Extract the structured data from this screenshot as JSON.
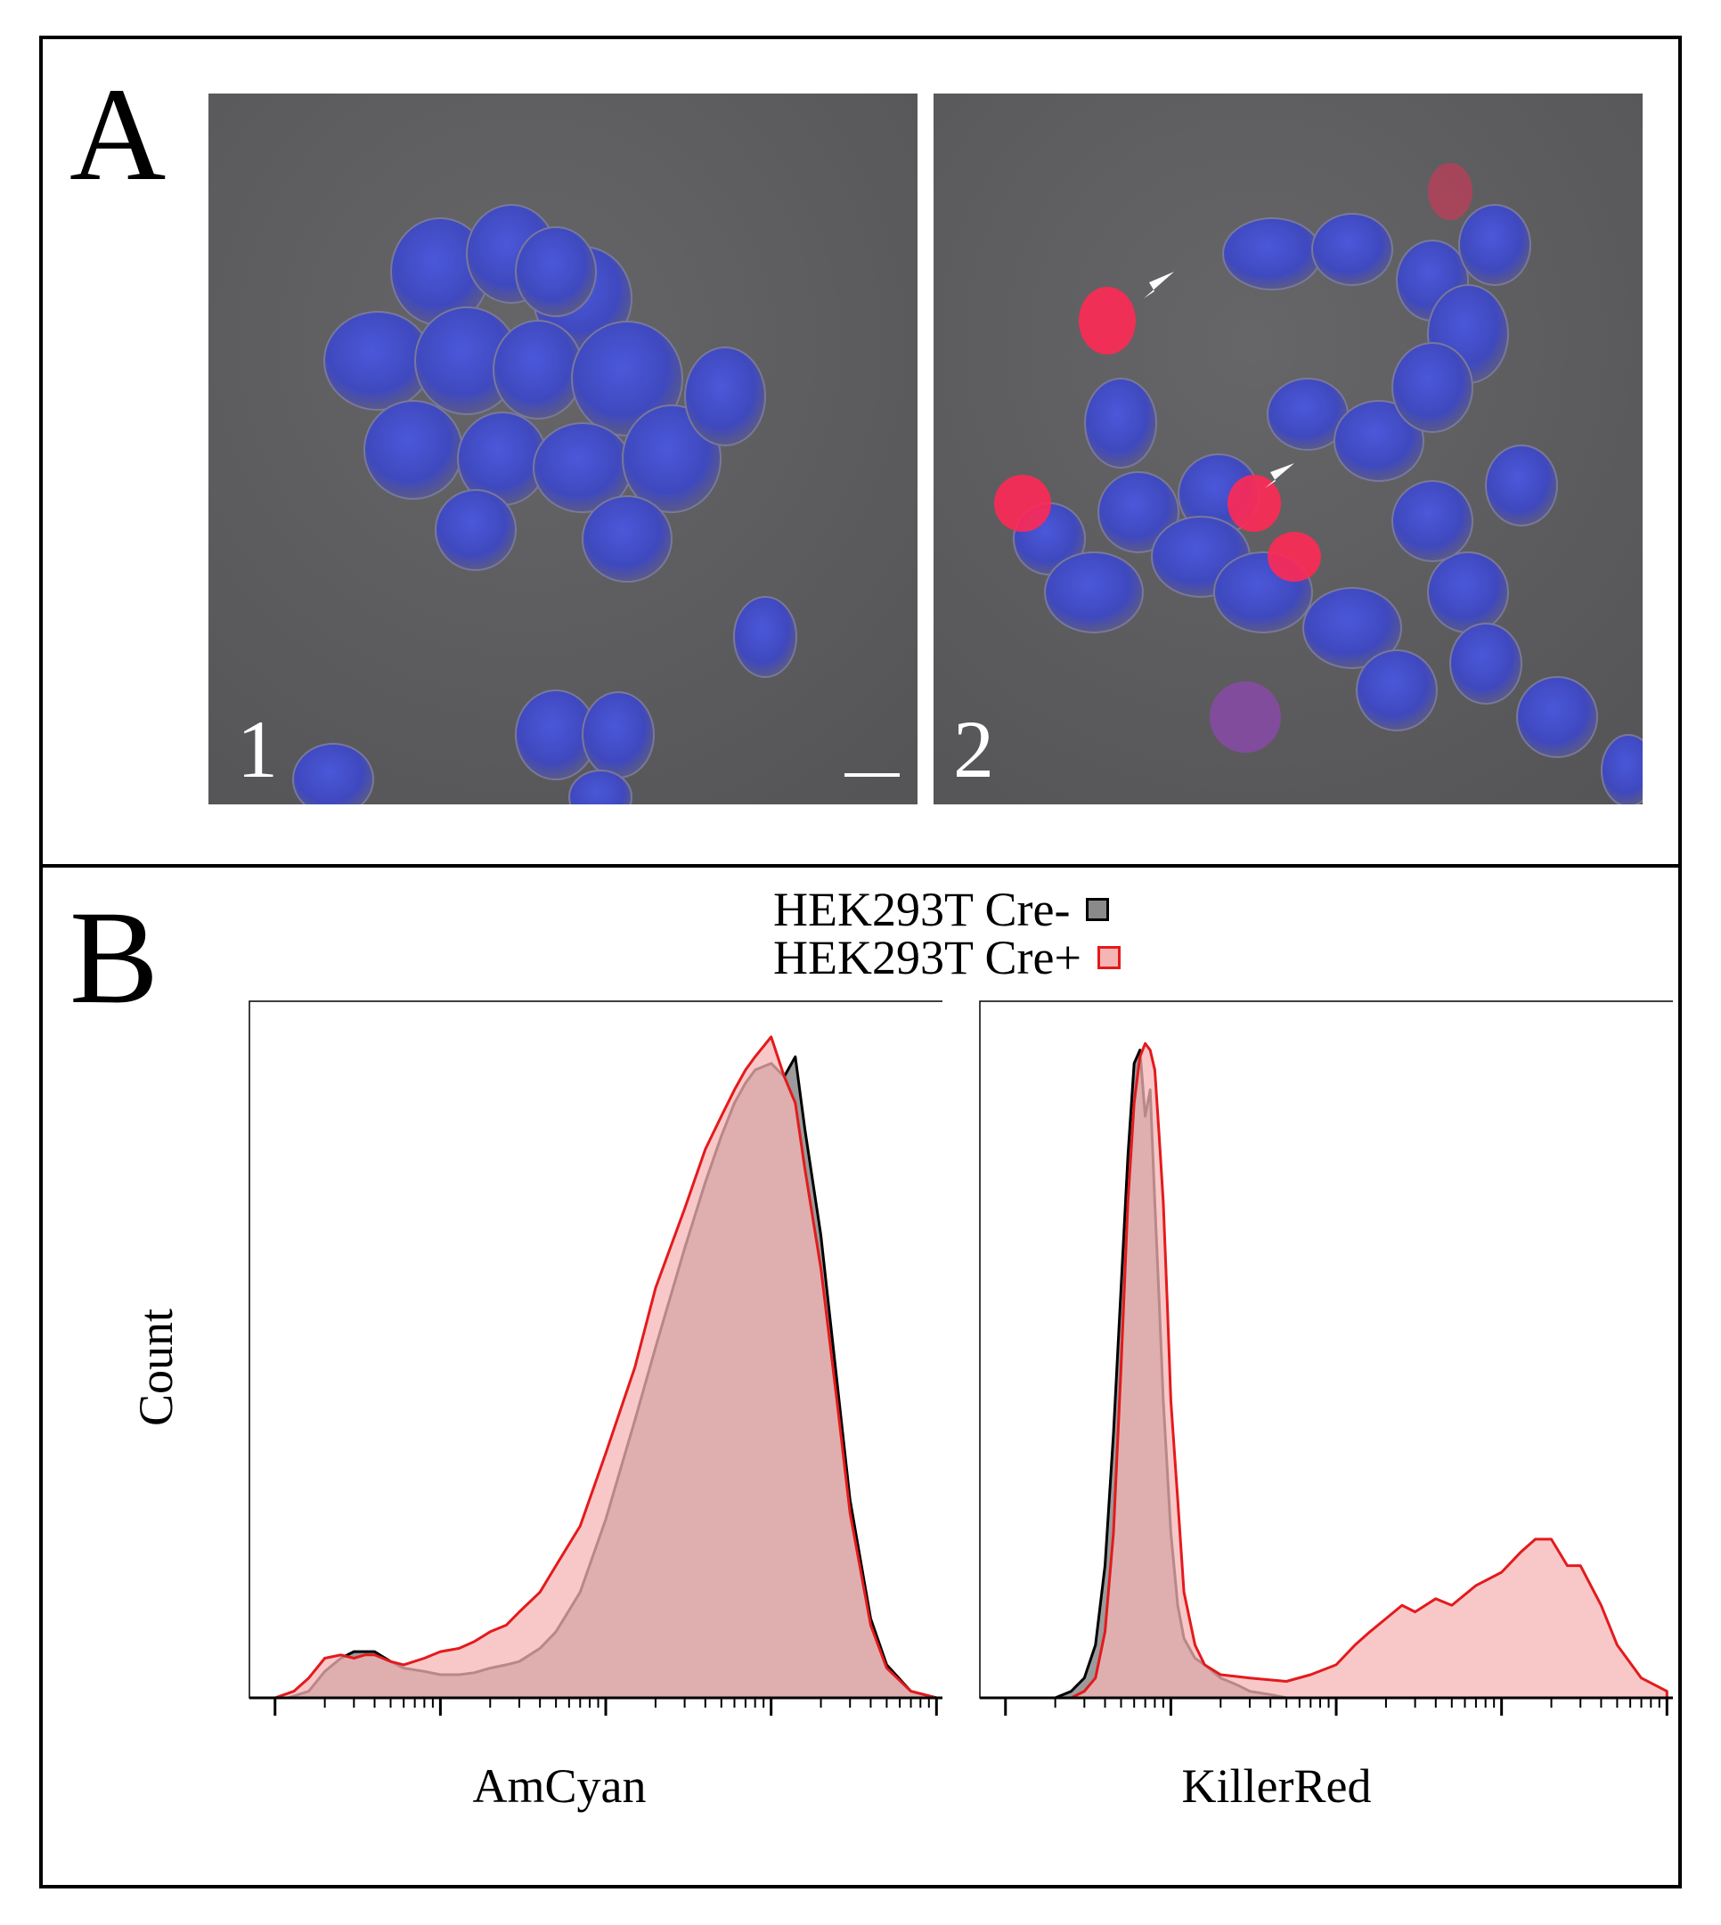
{
  "panel_a": {
    "letter": "A",
    "image_1": {
      "number": "1",
      "scale_bar": true
    },
    "image_2": {
      "number": "2",
      "arrowheads": 2
    },
    "colors": {
      "background": "#5c5c5e",
      "blue_stain": "#3c46c8",
      "red_stain": "#ff2a55"
    }
  },
  "panel_b": {
    "letter": "B",
    "legend": [
      {
        "label": "HEK293T Cre-",
        "fill": "#8a8a8a",
        "stroke": "#000000"
      },
      {
        "label": "HEK293T Cre+",
        "fill": "#f6b5b5",
        "stroke": "#e41a1c"
      }
    ],
    "ylabel": "Count"
  },
  "chart_data": [
    {
      "type": "area",
      "xlabel": "AmCyan",
      "ylabel": "Count",
      "xscale": "log",
      "xlim": [
        0.7,
        12000
      ],
      "ylim": [
        0,
        1.0
      ],
      "xticks": [
        "10^0",
        "10^1",
        "10^2",
        "10^3",
        "10^4"
      ],
      "series": [
        {
          "name": "HEK293T Cre-",
          "color": "#000000",
          "fill": "#8a8a8a",
          "x": [
            1.2,
            1.6,
            2.0,
            2.5,
            3.0,
            3.5,
            4.0,
            5.0,
            6.0,
            8.0,
            10,
            13,
            16,
            20,
            25,
            30,
            40,
            50,
            70,
            100,
            150,
            200,
            300,
            400,
            500,
            600,
            700,
            800,
            1000,
            1200,
            1400,
            1600,
            2000,
            2500,
            3000,
            4000,
            5000,
            7000,
            10000
          ],
          "values": [
            0.0,
            0.01,
            0.04,
            0.06,
            0.07,
            0.07,
            0.07,
            0.055,
            0.045,
            0.04,
            0.035,
            0.035,
            0.038,
            0.045,
            0.05,
            0.055,
            0.075,
            0.1,
            0.16,
            0.27,
            0.42,
            0.53,
            0.68,
            0.78,
            0.85,
            0.9,
            0.93,
            0.95,
            0.96,
            0.94,
            0.97,
            0.86,
            0.7,
            0.48,
            0.3,
            0.12,
            0.05,
            0.01,
            0.0
          ]
        },
        {
          "name": "HEK293T Cre+",
          "color": "#e41a1c",
          "fill": "#f6b5b5",
          "x": [
            1.0,
            1.3,
            1.6,
            2.0,
            2.5,
            3.0,
            3.5,
            4.0,
            5.0,
            6.0,
            8.0,
            10,
            13,
            16,
            20,
            25,
            30,
            40,
            50,
            70,
            100,
            150,
            200,
            300,
            400,
            500,
            600,
            700,
            800,
            1000,
            1200,
            1400,
            1600,
            2000,
            2500,
            3000,
            4000,
            5000,
            7000,
            10000
          ],
          "values": [
            0.0,
            0.01,
            0.03,
            0.06,
            0.065,
            0.06,
            0.065,
            0.065,
            0.055,
            0.05,
            0.06,
            0.07,
            0.075,
            0.085,
            0.1,
            0.11,
            0.13,
            0.16,
            0.2,
            0.26,
            0.37,
            0.5,
            0.62,
            0.74,
            0.83,
            0.88,
            0.92,
            0.95,
            0.97,
            1.0,
            0.94,
            0.9,
            0.8,
            0.65,
            0.45,
            0.28,
            0.11,
            0.045,
            0.01,
            0.0
          ]
        }
      ]
    },
    {
      "type": "area",
      "xlabel": "KillerRed",
      "ylabel": "Count",
      "xscale": "log",
      "xlim": [
        0.7,
        12000
      ],
      "ylim": [
        0,
        1.0
      ],
      "xticks": [
        "10^0",
        "10^1",
        "10^2",
        "10^3",
        "10^4"
      ],
      "series": [
        {
          "name": "HEK293T Cre-",
          "color": "#000000",
          "fill": "#8a8a8a",
          "x": [
            2.0,
            2.5,
            3.0,
            3.5,
            4.0,
            4.5,
            5.0,
            5.5,
            6.0,
            6.5,
            7.0,
            7.5,
            8.0,
            8.5,
            9.0,
            10,
            11,
            12,
            14,
            16,
            20,
            25,
            30,
            40,
            50
          ],
          "values": [
            0.0,
            0.01,
            0.03,
            0.08,
            0.2,
            0.4,
            0.62,
            0.82,
            0.96,
            0.98,
            0.88,
            0.92,
            0.75,
            0.6,
            0.45,
            0.25,
            0.14,
            0.09,
            0.06,
            0.05,
            0.03,
            0.02,
            0.01,
            0.005,
            0.0
          ]
        },
        {
          "name": "HEK293T Cre+",
          "color": "#e41a1c",
          "fill": "#f6b5b5",
          "x": [
            2.5,
            3.0,
            3.5,
            4.0,
            4.5,
            5.0,
            5.5,
            6.0,
            6.5,
            7.0,
            7.5,
            8.0,
            8.5,
            9.0,
            9.5,
            10,
            11,
            12,
            14,
            16,
            20,
            30,
            50,
            70,
            100,
            130,
            160,
            200,
            250,
            300,
            400,
            500,
            700,
            1000,
            1300,
            1600,
            2000,
            2500,
            3000,
            4000,
            5000,
            7000,
            10000
          ],
          "values": [
            0.0,
            0.01,
            0.03,
            0.1,
            0.25,
            0.5,
            0.75,
            0.9,
            0.97,
            0.99,
            0.98,
            0.95,
            0.85,
            0.75,
            0.6,
            0.45,
            0.3,
            0.16,
            0.08,
            0.05,
            0.035,
            0.03,
            0.025,
            0.035,
            0.05,
            0.08,
            0.1,
            0.12,
            0.14,
            0.13,
            0.15,
            0.14,
            0.17,
            0.19,
            0.22,
            0.24,
            0.24,
            0.2,
            0.2,
            0.14,
            0.08,
            0.03,
            0.01
          ]
        }
      ]
    }
  ]
}
